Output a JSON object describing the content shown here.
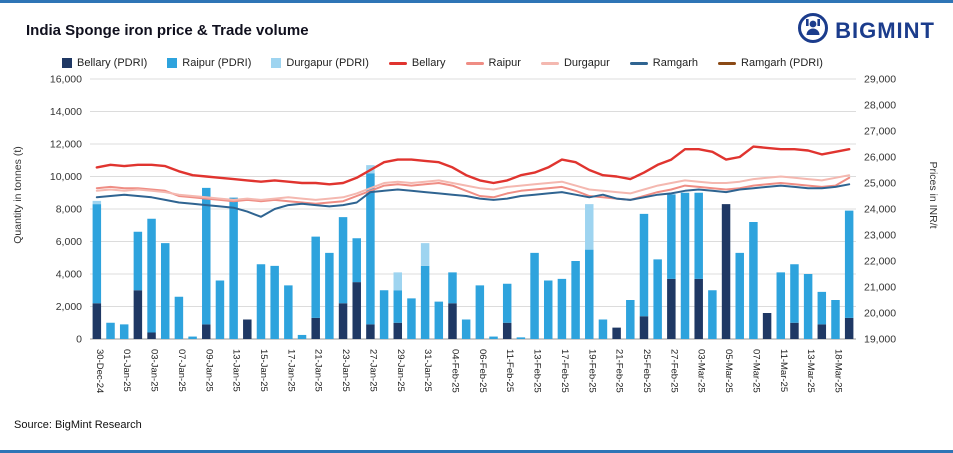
{
  "meta": {
    "title": "India Sponge iron price & Trade volume",
    "source": "Source: BigMint Research",
    "brand": "BIGMINT",
    "brand_color": "#1b3c8c",
    "border_color": "#2e75b6"
  },
  "axes": {
    "left_title": "Quantity in tonnes (t)",
    "right_title": "Prices in INR/t"
  },
  "legend": [
    {
      "label": "Bellary (PDRI)",
      "type": "bar",
      "color": "#1f3864"
    },
    {
      "label": "Raipur (PDRI)",
      "type": "bar",
      "color": "#2ea3dd"
    },
    {
      "label": "Durgapur (PDRI)",
      "type": "bar",
      "color": "#9ed4f0"
    },
    {
      "label": "Bellary",
      "type": "line",
      "color": "#e0342f"
    },
    {
      "label": "Raipur",
      "type": "line",
      "color": "#ef8d84"
    },
    {
      "label": "Durgapur",
      "type": "line",
      "color": "#f4b8b0"
    },
    {
      "label": "Ramgarh",
      "type": "line",
      "color": "#2f6491"
    },
    {
      "label": "Ramgarh (PDRI)",
      "type": "line",
      "color": "#8b4a16"
    }
  ],
  "chart_data": {
    "type": "combo",
    "n_points": 56,
    "label_every": 2,
    "categories": [
      "30-Dec-24",
      "01-Jan-25",
      "03-Jan-25",
      "07-Jan-25",
      "09-Jan-25",
      "13-Jan-25",
      "15-Jan-25",
      "17-Jan-25",
      "21-Jan-25",
      "23-Jan-25",
      "27-Jan-25",
      "29-Jan-25",
      "31-Jan-25",
      "04-Feb-25",
      "06-Feb-25",
      "11-Feb-25",
      "13-Feb-25",
      "17-Feb-25",
      "19-Feb-25",
      "21-Feb-25",
      "25-Feb-25",
      "27-Feb-25",
      "03-Mar-25",
      "05-Mar-25",
      "07-Mar-25",
      "11-Mar-25",
      "13-Mar-25",
      "18-Mar-25"
    ],
    "y_left": {
      "min": 0,
      "max": 16000,
      "step": 2000,
      "tick_labels": [
        "0",
        "2,000",
        "4,000",
        "6,000",
        "8,000",
        "10,000",
        "12,000",
        "14,000",
        "16,000"
      ]
    },
    "y_right": {
      "min": 19000,
      "max": 29000,
      "step": 1000,
      "tick_labels": [
        "19,000",
        "20,000",
        "21,000",
        "22,000",
        "23,000",
        "24,000",
        "25,000",
        "26,000",
        "27,000",
        "28,000",
        "29,000"
      ]
    },
    "bar_series": [
      {
        "name": "Bellary (PDRI)",
        "color": "#1f3864",
        "values": [
          2200,
          0,
          0,
          3000,
          400,
          0,
          0,
          0,
          900,
          0,
          0,
          1200,
          0,
          0,
          0,
          0,
          1300,
          0,
          2200,
          3500,
          900,
          0,
          1000,
          0,
          0,
          0,
          2200,
          0,
          0,
          0,
          1000,
          0,
          0,
          0,
          0,
          0,
          0,
          0,
          700,
          0,
          1400,
          0,
          3700,
          0,
          3700,
          0,
          8300,
          0,
          0,
          1600,
          0,
          1000,
          0,
          900,
          0,
          1300
        ]
      },
      {
        "name": "Raipur (PDRI)",
        "color": "#2ea3dd",
        "values": [
          6100,
          1000,
          900,
          3600,
          7000,
          5900,
          2600,
          150,
          8400,
          3600,
          8700,
          0,
          4600,
          4500,
          3300,
          250,
          5000,
          5300,
          5300,
          2700,
          9300,
          3000,
          2000,
          2500,
          4500,
          2300,
          1900,
          1200,
          3300,
          150,
          2400,
          100,
          5300,
          3600,
          3700,
          4800,
          5500,
          1200,
          0,
          2400,
          6300,
          4900,
          5200,
          9000,
          5300,
          3000,
          0,
          5300,
          7200,
          0,
          4100,
          3600,
          4000,
          2000,
          2400,
          6600
        ]
      },
      {
        "name": "Durgapur (PDRI)",
        "color": "#9ed4f0",
        "values": [
          200,
          0,
          0,
          0,
          0,
          0,
          0,
          0,
          0,
          0,
          0,
          0,
          0,
          0,
          0,
          0,
          0,
          0,
          0,
          0,
          500,
          0,
          1100,
          0,
          1400,
          0,
          0,
          0,
          0,
          0,
          0,
          0,
          0,
          0,
          0,
          0,
          2800,
          0,
          0,
          0,
          0,
          0,
          0,
          0,
          0,
          0,
          0,
          0,
          0,
          0,
          0,
          0,
          0,
          0,
          0,
          0
        ]
      },
      {
        "name": "Ramgarh (PDRI)",
        "color": "#8b4a16",
        "values": [
          0,
          0,
          0,
          0,
          0,
          0,
          0,
          0,
          0,
          0,
          0,
          0,
          0,
          0,
          0,
          0,
          0,
          0,
          0,
          0,
          0,
          0,
          0,
          0,
          0,
          0,
          0,
          0,
          0,
          0,
          0,
          0,
          0,
          0,
          0,
          0,
          0,
          0,
          0,
          0,
          0,
          0,
          0,
          0,
          0,
          0,
          0,
          0,
          0,
          0,
          0,
          0,
          0,
          0,
          0,
          0
        ]
      }
    ],
    "line_series": [
      {
        "name": "Bellary",
        "color": "#e0342f",
        "width": 2.4,
        "values": [
          25600,
          25700,
          25650,
          25700,
          25700,
          25650,
          25450,
          25300,
          25250,
          25200,
          25150,
          25100,
          25050,
          25100,
          25050,
          25000,
          25000,
          24950,
          25000,
          25200,
          25500,
          25800,
          25900,
          25900,
          25850,
          25800,
          25600,
          25300,
          25100,
          25000,
          25100,
          25300,
          25400,
          25600,
          25900,
          25800,
          25500,
          25300,
          25250,
          25150,
          25400,
          25700,
          25900,
          26300,
          26300,
          26200,
          25900,
          26000,
          26400,
          26350,
          26300,
          26300,
          26250,
          26100,
          26200,
          26300
        ]
      },
      {
        "name": "Raipur",
        "color": "#ef8d84",
        "width": 2,
        "values": [
          24800,
          24850,
          24800,
          24800,
          24750,
          24700,
          24500,
          24450,
          24400,
          24350,
          24300,
          24350,
          24300,
          24350,
          24300,
          24250,
          24200,
          24250,
          24300,
          24500,
          24700,
          24900,
          24950,
          24900,
          24950,
          25000,
          24900,
          24700,
          24500,
          24450,
          24600,
          24700,
          24750,
          24800,
          24850,
          24700,
          24500,
          24450,
          24400,
          24350,
          24500,
          24650,
          24750,
          24900,
          24850,
          24800,
          24750,
          24800,
          24900,
          24950,
          25000,
          24950,
          24900,
          24850,
          24900,
          25200
        ]
      },
      {
        "name": "Durgapur",
        "color": "#f4b8b0",
        "width": 2,
        "values": [
          24700,
          24750,
          24700,
          24750,
          24700,
          24650,
          24550,
          24500,
          24450,
          24400,
          24350,
          24400,
          24350,
          24400,
          24450,
          24400,
          24350,
          24400,
          24450,
          24600,
          24800,
          25000,
          25050,
          25000,
          25050,
          25100,
          25000,
          24900,
          24800,
          24750,
          24850,
          24900,
          24950,
          25000,
          25050,
          24900,
          24750,
          24700,
          24650,
          24600,
          24750,
          24900,
          25000,
          25100,
          25050,
          25000,
          25000,
          25050,
          25150,
          25200,
          25250,
          25200,
          25150,
          25100,
          25200,
          25300
        ]
      },
      {
        "name": "Ramgarh",
        "color": "#2f6491",
        "width": 2,
        "values": [
          24450,
          24500,
          24550,
          24500,
          24450,
          24350,
          24250,
          24200,
          24150,
          24100,
          24050,
          23900,
          23700,
          24000,
          24150,
          24200,
          24150,
          24100,
          24150,
          24250,
          24650,
          24700,
          24750,
          24700,
          24650,
          24600,
          24550,
          24500,
          24400,
          24350,
          24400,
          24500,
          24550,
          24600,
          24650,
          24550,
          24450,
          24550,
          24400,
          24350,
          24450,
          24550,
          24600,
          24700,
          24750,
          24700,
          24650,
          24750,
          24800,
          24850,
          24900,
          24850,
          24800,
          24800,
          24850,
          24950
        ]
      }
    ]
  }
}
